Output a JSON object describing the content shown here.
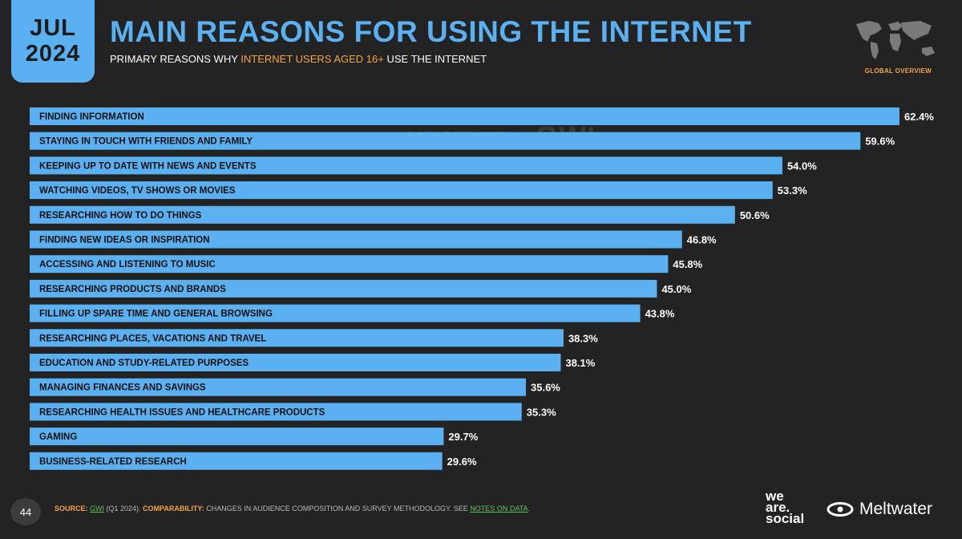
{
  "header": {
    "month": "JUL",
    "year": "2024",
    "title": "MAIN REASONS FOR USING THE INTERNET",
    "subtitle_pre": "PRIMARY REASONS WHY ",
    "subtitle_highlight": "INTERNET USERS AGED 16+",
    "subtitle_post": " USE THE INTERNET",
    "global_overview": "GLOBAL OVERVIEW"
  },
  "watermark": {
    "datareportal": "DATAREPORTAL",
    "gwi": "GWI."
  },
  "colors": {
    "bar": "#5ab0f0",
    "background": "#232323",
    "accent": "#f7a541",
    "link": "#5cc65a"
  },
  "chart_data": {
    "type": "bar",
    "orientation": "horizontal",
    "categories": [
      "FINDING INFORMATION",
      "STAYING IN TOUCH WITH FRIENDS AND FAMILY",
      "KEEPING UP TO DATE WITH NEWS AND EVENTS",
      "WATCHING VIDEOS, TV SHOWS OR MOVIES",
      "RESEARCHING HOW TO DO THINGS",
      "FINDING NEW IDEAS OR INSPIRATION",
      "ACCESSING AND LISTENING TO MUSIC",
      "RESEARCHING PRODUCTS AND BRANDS",
      "FILLING UP SPARE TIME AND GENERAL BROWSING",
      "RESEARCHING PLACES, VACATIONS AND TRAVEL",
      "EDUCATION AND STUDY-RELATED PURPOSES",
      "MANAGING FINANCES AND SAVINGS",
      "RESEARCHING HEALTH ISSUES AND HEALTHCARE PRODUCTS",
      "GAMING",
      "BUSINESS-RELATED RESEARCH"
    ],
    "values": [
      62.4,
      59.6,
      54.0,
      53.3,
      50.6,
      46.8,
      45.8,
      45.0,
      43.8,
      38.3,
      38.1,
      35.6,
      35.3,
      29.7,
      29.6
    ],
    "value_labels": [
      "62.4%",
      "59.6%",
      "54.0%",
      "53.3%",
      "50.6%",
      "46.8%",
      "45.8%",
      "45.0%",
      "43.8%",
      "38.3%",
      "38.1%",
      "35.6%",
      "35.3%",
      "29.7%",
      "29.6%"
    ],
    "unit": "%",
    "grid": false,
    "legend": "none"
  },
  "footer": {
    "page_number": "44",
    "source_label": "SOURCE:",
    "source_link": "GWI",
    "source_text": " (Q1 2024). ",
    "comparability_label": "COMPARABILITY:",
    "comparability_text": " CHANGES IN AUDIENCE COMPOSITION AND SURVEY METHODOLOGY. SEE ",
    "notes_link": "NOTES ON DATA",
    "notes_end": ".",
    "brand1_line1": "we",
    "brand1_line2": "are.",
    "brand1_line3": "social",
    "brand2": "Meltwater"
  }
}
